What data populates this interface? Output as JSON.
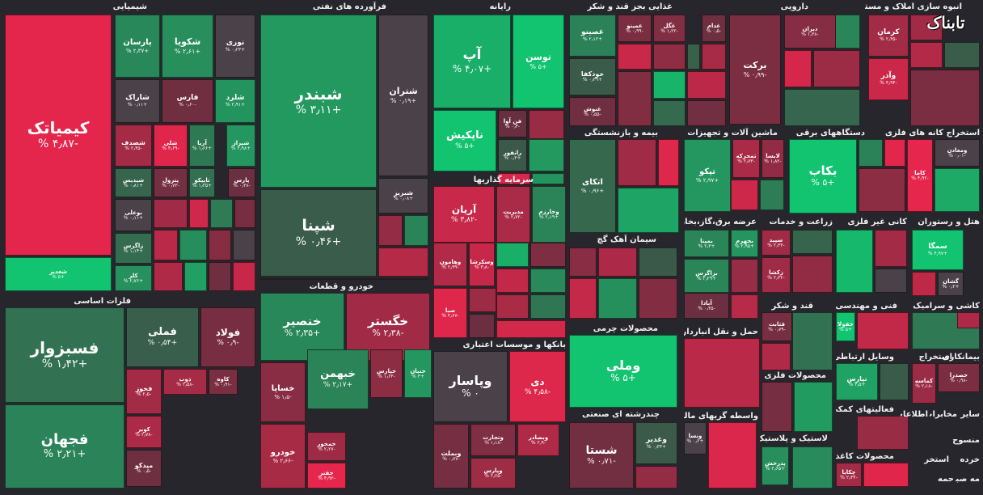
{
  "chart_data": {
    "type": "treemap",
    "title": "",
    "colors": {
      "positive": "#17b866",
      "negative": "#e0294a",
      "neutral": "#4a3f48"
    },
    "sectors": [
      {
        "name": "شیمیایی",
        "stocks": [
          {
            "symbol": "کیمیاتک",
            "change": "-۴٫۸۷ %"
          },
          {
            "symbol": "شغدیر",
            "change": "+۵ %"
          },
          {
            "symbol": "پارسان",
            "change": "+۲٫۳۷ %"
          },
          {
            "symbol": "شکویا",
            "change": "+۲٫۶۱ %"
          },
          {
            "symbol": "نوری",
            "change": "+۰٫۲۳ %"
          },
          {
            "symbol": "شاراک",
            "change": "+۰٫۱۱ %"
          },
          {
            "symbol": "فارس",
            "change": "-۰٫۶۰ %"
          },
          {
            "symbol": "شلرد",
            "change": "+۲٫۹۱ %"
          },
          {
            "symbol": "شصدف",
            "change": "-۲٫۴۵ %"
          },
          {
            "symbol": "شلی",
            "change": "-۴٫۶۹ %"
          },
          {
            "symbol": "آریا",
            "change": "+۱٫۶۶ %"
          },
          {
            "symbol": "شیراز",
            "change": "+۲٫۹۸ %"
          },
          {
            "symbol": "شیدیس",
            "change": "+۰٫۸۱ %"
          },
          {
            "symbol": "پترول",
            "change": "-۰٫۷۳ %"
          },
          {
            "symbol": "تاپیکو",
            "change": "+۱٫۲۵ %"
          },
          {
            "symbol": "پارس",
            "change": "-۰٫۳۸ %"
          },
          {
            "symbol": "بوعلی",
            "change": "+۰٫۱۱ %"
          },
          {
            "symbol": "زاگرس",
            "change": "+۱٫۱۴ %"
          },
          {
            "symbol": "کلر",
            "change": "+۲٫۷۶ %"
          }
        ]
      },
      {
        "name": "فرآورده های نفتی",
        "stocks": [
          {
            "symbol": "شبندر",
            "change": "+۳٫۱۱ %"
          },
          {
            "symbol": "شتران",
            "change": "+۰٫۱۹ %"
          },
          {
            "symbol": "شپنا",
            "change": "+۰٫۴۶ %"
          },
          {
            "symbol": "شبریز",
            "change": "+۰٫۰۸ %"
          }
        ]
      },
      {
        "name": "رایانه",
        "stocks": [
          {
            "symbol": "آپ",
            "change": "+۴٫۰۷ %"
          },
          {
            "symbol": "توسن",
            "change": "+۵ %"
          },
          {
            "symbol": "فن آوا",
            "change": "-۰٫۳ %"
          },
          {
            "symbol": "ناپکیش",
            "change": "+۵ %"
          },
          {
            "symbol": "رانفور",
            "change": "+۰٫۳ %"
          }
        ]
      },
      {
        "name": "غذایی بجز قند و شکر",
        "stocks": [
          {
            "symbol": "غصینو",
            "change": "+۲٫۱۲ %"
          },
          {
            "symbol": "غمینو",
            "change": "-۰٫۹۹ %"
          },
          {
            "symbol": "غگل",
            "change": "-۱٫۲۲ %"
          },
          {
            "symbol": "غدام",
            "change": "-۰٫۵ %"
          },
          {
            "symbol": "خودکفا",
            "change": "+۰٫۳۹ %"
          },
          {
            "symbol": "غنوش",
            "change": "-۰٫۵۵ %"
          }
        ]
      },
      {
        "name": "دارویی",
        "stocks": [
          {
            "symbol": "دیران",
            "change": "-۱٫۳۸ %"
          },
          {
            "symbol": "برکت",
            "change": "-۰٫۹۹ %"
          }
        ]
      },
      {
        "name": "انبوه سازی املاک و مستغلات",
        "stocks": [
          {
            "symbol": "کرمان",
            "change": "-۲٫۴۵ %"
          },
          {
            "symbol": "وآذر",
            "change": "-۳٫۹۴ %"
          }
        ]
      },
      {
        "name": "بیمه و بازنشستگی",
        "stocks": [
          {
            "symbol": "اتکای",
            "change": "+۰٫۹۶ %"
          }
        ]
      },
      {
        "name": "ماشین آلات و تجهیزات",
        "stocks": [
          {
            "symbol": "تپکو",
            "change": "+۲٫۹۷ %"
          },
          {
            "symbol": "تمحرکه",
            "change": "-۲٫۷۳ %"
          },
          {
            "symbol": "لابسا",
            "change": "-۱٫۸۲ %"
          }
        ]
      },
      {
        "name": "دستگاههای برقی",
        "stocks": [
          {
            "symbol": "بکاب",
            "change": "+۵ %"
          }
        ]
      },
      {
        "name": "استخراج کانه های فلزی",
        "stocks": [
          {
            "symbol": "ومعادن",
            "change": "-۰٫۰۱ %"
          },
          {
            "symbol": "کاما",
            "change": "-۴٫۹۲ %"
          }
        ]
      },
      {
        "name": "سرمایه گذاریها",
        "stocks": [
          {
            "symbol": "آریان",
            "change": "-۳٫۸۲ %"
          },
          {
            "symbol": "مدیریت",
            "change": "-۲٫۷۲ %"
          },
          {
            "symbol": "وخارزم",
            "change": "+۲٫۱۹ %"
          },
          {
            "symbol": "وهامون",
            "change": "-۲٫۹۹ %"
          },
          {
            "symbol": "وسکرشا",
            "change": "-۳٫۸ %"
          },
          {
            "symbol": "صبا",
            "change": "-۴٫۶۷ %"
          }
        ]
      },
      {
        "name": "سیمان آهک گچ",
        "stocks": []
      },
      {
        "name": "عرضه برق،گاز،بخار و",
        "stocks": [
          {
            "symbol": "بمپنا",
            "change": "+۲٫۳ %"
          },
          {
            "symbol": "بجهرم",
            "change": "+۲٫۹۵ %"
          },
          {
            "symbol": "بزاگرس",
            "change": "+۲٫۲۹ %"
          },
          {
            "symbol": "آبادا",
            "change": "-۰٫۴۵ %"
          }
        ]
      },
      {
        "name": "زراعت و خدمات",
        "stocks": [
          {
            "symbol": "سپید",
            "change": "-۲٫۳۳ %"
          },
          {
            "symbol": "زکشا",
            "change": "-۲٫۳۲ %"
          }
        ]
      },
      {
        "name": "کانی غیر فلزی",
        "stocks": []
      },
      {
        "name": "هتل و رستوران",
        "stocks": [
          {
            "symbol": "سمگا",
            "change": "+۴٫۹۷ %"
          },
          {
            "symbol": "گشان",
            "change": "+۰٫۲ %"
          }
        ]
      },
      {
        "name": "فلزات اساسی",
        "stocks": [
          {
            "symbol": "فسبزوار",
            "change": "+۱٫۴۲ %"
          },
          {
            "symbol": "فجهان",
            "change": "+۲٫۲۱ %"
          },
          {
            "symbol": "فملی",
            "change": "+۰٫۵۴ %"
          },
          {
            "symbol": "فولاد",
            "change": "-۰٫۹ %"
          },
          {
            "symbol": "فخوز",
            "change": "-۲٫۵ %"
          },
          {
            "symbol": "ذوب",
            "change": "-۲٫۵۸ %"
          },
          {
            "symbol": "کاوه",
            "change": "-۰٫۹۱ %"
          },
          {
            "symbol": "کویر",
            "change": "-۲٫۷۸ %"
          },
          {
            "symbol": "میدکو",
            "change": "-۰٫۵ %"
          }
        ]
      },
      {
        "name": "خودرو و قطعات",
        "stocks": [
          {
            "symbol": "خنصیر",
            "change": "+۲٫۳۵ %"
          },
          {
            "symbol": "خگستر",
            "change": "-۲٫۳۸ %"
          },
          {
            "symbol": "خساپا",
            "change": "-۱٫۵ %"
          },
          {
            "symbol": "خبهمن",
            "change": "+۲٫۱۷ %"
          },
          {
            "symbol": "خپارس",
            "change": "-۱٫۶۳ %"
          },
          {
            "symbol": "خنیان",
            "change": "+۳ %"
          },
          {
            "symbol": "خودرو",
            "change": "-۲٫۶۶ %"
          },
          {
            "symbol": "خمحور",
            "change": "-۲٫۲۷ %"
          },
          {
            "symbol": "خفنر",
            "change": "-۴٫۹۳ %"
          }
        ]
      },
      {
        "name": "بانکها و موسسات اعتباری",
        "stocks": [
          {
            "symbol": "وپاسار",
            "change": "۰ %"
          },
          {
            "symbol": "دی",
            "change": "-۴٫۵۸ %"
          },
          {
            "symbol": "وبملت",
            "change": "-۰٫۷۷ %"
          },
          {
            "symbol": "وتجارت",
            "change": "-۱٫۱۸ %"
          },
          {
            "symbol": "وبصادر",
            "change": "-۲٫۹ %"
          },
          {
            "symbol": "وپارس",
            "change": "-۲٫۲۵ %"
          }
        ]
      },
      {
        "name": "محصولات چرمی",
        "stocks": [
          {
            "symbol": "وملی",
            "change": "+۵ %"
          }
        ]
      },
      {
        "name": "چندرشته ای صنعتی",
        "stocks": [
          {
            "symbol": "شستا",
            "change": "-۰٫۷۱ %"
          },
          {
            "symbol": "وغدیر",
            "change": "+۰٫۳۳ %"
          }
        ]
      },
      {
        "name": "واسطه گریهای مالی",
        "stocks": [
          {
            "symbol": "ونسا",
            "change": "+۰٫۲ %"
          }
        ]
      },
      {
        "name": "حمل و نقل انبارداری",
        "stocks": []
      },
      {
        "name": "قند و شکر",
        "stocks": [
          {
            "symbol": "قثابت",
            "change": "-۰٫۷۹ %"
          }
        ]
      },
      {
        "name": "محصولات فلزی",
        "stocks": []
      },
      {
        "name": "لاستیک و پلاستیک",
        "stocks": [
          {
            "symbol": "پدرخش",
            "change": "+۲٫۶۵ %"
          }
        ]
      },
      {
        "name": "فنی و مهندسی",
        "stocks": [
          {
            "symbol": "خفولا",
            "change": "+۵ %"
          }
        ]
      },
      {
        "name": "وسایل ارتباطی",
        "stocks": [
          {
            "symbol": "نپارس",
            "change": "+۳٫۵ %"
          }
        ]
      },
      {
        "name": "فعالیتهای کمکی",
        "stocks": []
      },
      {
        "name": "محصولات کاغذی",
        "stocks": [
          {
            "symbol": "چکاپا",
            "change": "-۲٫۴۴ %"
          }
        ]
      },
      {
        "name": "کاشی و سرامیک",
        "stocks": []
      },
      {
        "name": "استخراج",
        "stocks": [
          {
            "symbol": "کماسه",
            "change": "-۲٫۱۸ %"
          }
        ]
      },
      {
        "name": "بیمانکاری",
        "stocks": [
          {
            "symbol": "خصدرا",
            "change": "-۰٫۹۸ %"
          }
        ]
      },
      {
        "name": "سایر",
        "stocks": []
      },
      {
        "name": "مخابرات",
        "stocks": []
      },
      {
        "name": "اطلاعات",
        "stocks": []
      },
      {
        "name": "منسوج",
        "stocks": []
      },
      {
        "name": "خرده",
        "stocks": []
      },
      {
        "name": "مه صبا",
        "stocks": []
      },
      {
        "name": "استخر",
        "stocks": []
      },
      {
        "name": "حمه",
        "stocks": []
      }
    ]
  },
  "logo": {
    "text": "تابناک"
  }
}
